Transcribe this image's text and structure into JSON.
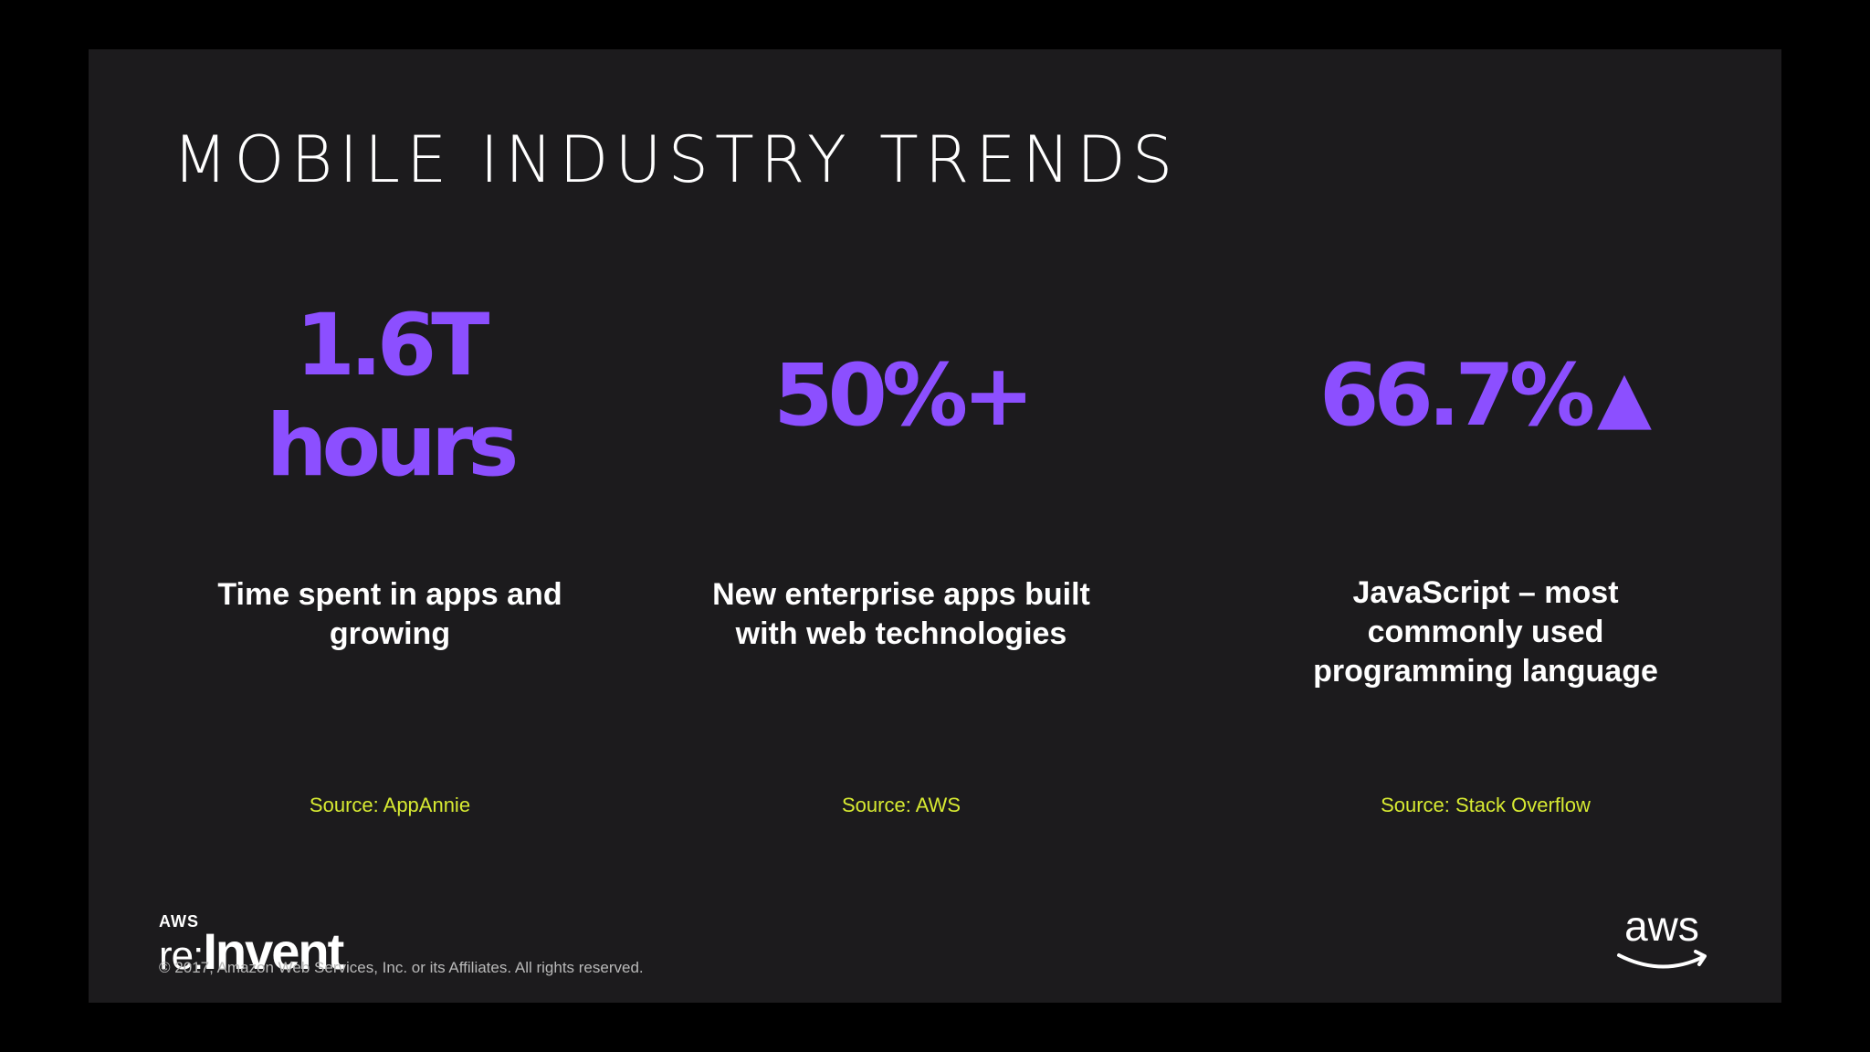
{
  "title": "MOBILE INDUSTRY TRENDS",
  "stats": [
    {
      "value_line1": "1.6T",
      "value_line2": "hours",
      "description": "Time spent in apps and growing",
      "source": "Source: AppAnnie"
    },
    {
      "value": "50%+",
      "description": "New enterprise apps built with web technologies",
      "source": "Source: AWS"
    },
    {
      "value": "66.7%",
      "icon": "up-triangle-icon",
      "description": "JavaScript – most commonly used programming language",
      "source": "Source: Stack Overflow"
    }
  ],
  "footer": {
    "logo_small": "AWS",
    "logo_re": "re:",
    "logo_invent": "Invent",
    "copyright": "© 2017, Amazon Web Services, Inc. or its Affiliates. All rights reserved.",
    "aws_logo_text": "aws"
  },
  "colors": {
    "accent": "#8c4fff",
    "source": "#d7ea32",
    "background": "#1c1b1d"
  }
}
